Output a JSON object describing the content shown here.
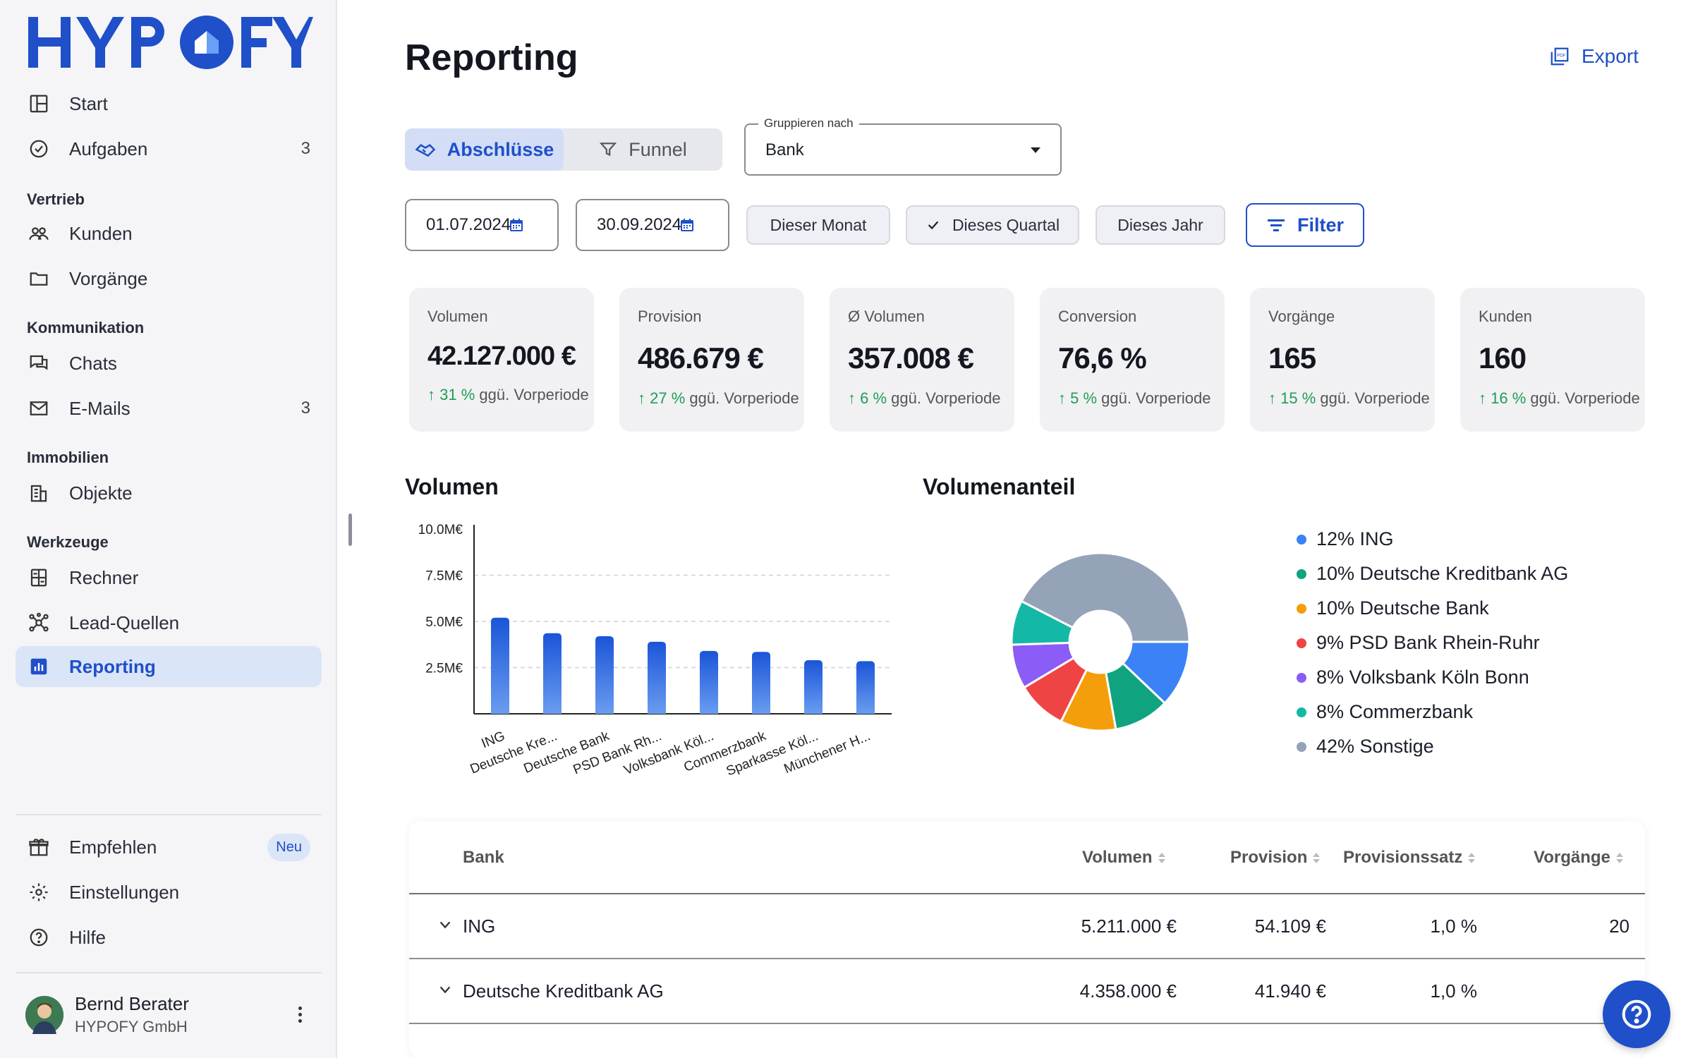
{
  "app": {
    "logo_text": "HYPOFY"
  },
  "sidebar": {
    "items": [
      {
        "label": "Start",
        "icon": "layout-icon"
      },
      {
        "label": "Aufgaben",
        "icon": "check-circle-icon",
        "count": "3"
      },
      {
        "label": "Kunden",
        "icon": "users-icon"
      },
      {
        "label": "Vorgänge",
        "icon": "folder-icon"
      },
      {
        "label": "Chats",
        "icon": "chat-icon"
      },
      {
        "label": "E-Mails",
        "icon": "mail-icon",
        "count": "3"
      },
      {
        "label": "Objekte",
        "icon": "building-icon"
      },
      {
        "label": "Rechner",
        "icon": "calculator-icon"
      },
      {
        "label": "Lead-Quellen",
        "icon": "network-icon"
      },
      {
        "label": "Reporting",
        "icon": "chart-icon"
      }
    ],
    "sections": {
      "vertrieb": "Vertrieb",
      "kommunikation": "Kommunikation",
      "immobilien": "Immobilien",
      "werkzeuge": "Werkzeuge"
    },
    "bottom": {
      "empfehlen": "Empfehlen",
      "neu_badge": "Neu",
      "einstellungen": "Einstellungen",
      "hilfe": "Hilfe"
    },
    "user": {
      "name": "Bernd Berater",
      "company": "HYPOFY GmbH"
    }
  },
  "header": {
    "title": "Reporting",
    "export_label": "Export"
  },
  "tabs": {
    "abschluesse": "Abschlüsse",
    "funnel": "Funnel"
  },
  "group_by": {
    "label": "Gruppieren nach",
    "value": "Bank"
  },
  "dates": {
    "from": "01.07.2024",
    "to": "30.09.2024"
  },
  "quick_filters": {
    "month": "Dieser Monat",
    "quarter": "Dieses Quartal",
    "year": "Dieses Jahr"
  },
  "filter_label": "Filter",
  "kpis": [
    {
      "label": "Volumen",
      "value": "42.127.000 €",
      "delta": "31 %",
      "delta_text": "ggü. Vorperiode"
    },
    {
      "label": "Provision",
      "value": "486.679 €",
      "delta": "27 %",
      "delta_text": "ggü. Vorperiode"
    },
    {
      "label": "Ø Volumen",
      "value": "357.008 €",
      "delta": "6 %",
      "delta_text": "ggü. Vorperiode"
    },
    {
      "label": "Conversion",
      "value": "76,6 %",
      "delta": "5 %",
      "delta_text": "ggü. Vorperiode"
    },
    {
      "label": "Vorgänge",
      "value": "165",
      "delta": "15 %",
      "delta_text": "ggü. Vorperiode"
    },
    {
      "label": "Kunden",
      "value": "160",
      "delta": "16 %",
      "delta_text": "ggü. Vorperiode"
    }
  ],
  "charts_titles": {
    "volumen": "Volumen",
    "volumenanteil": "Volumenanteil"
  },
  "chart_data": [
    {
      "type": "bar",
      "categories": [
        "ING",
        "Deutsche Kre...",
        "Deutsche Bank",
        "PSD Bank Rh...",
        "Volksbank Köl...",
        "Commerzbank",
        "Sparkasse Köl...",
        "Münchener H..."
      ],
      "values": [
        5.2,
        4.36,
        4.2,
        3.9,
        3.4,
        3.35,
        2.9,
        2.85
      ],
      "title": "Volumen",
      "ylim": [
        0,
        10
      ],
      "ytick_labels": [
        "2.5M€",
        "5.0M€",
        "7.5M€",
        "10.0M€"
      ],
      "yticks": [
        2.5,
        5.0,
        7.5,
        10.0
      ],
      "grid": true,
      "color": "#1f5fe0"
    },
    {
      "type": "pie",
      "title": "Volumenanteil",
      "labels": [
        "ING",
        "Deutsche Kreditbank AG",
        "Deutsche Bank",
        "PSD Bank Rhein-Ruhr",
        "Volksbank Köln Bonn",
        "Commerzbank",
        "Sonstige"
      ],
      "values": [
        12,
        10,
        10,
        9,
        8,
        8,
        42
      ],
      "legend": [
        "12% ING",
        "10% Deutsche Kreditbank AG",
        "10% Deutsche Bank",
        "9% PSD Bank Rhein-Ruhr",
        "8% Volksbank Köln Bonn",
        "8% Commerzbank",
        "42% Sonstige"
      ],
      "colors": [
        "#3b82f6",
        "#10a37f",
        "#f59e0b",
        "#ef4444",
        "#8b5cf6",
        "#14b8a6",
        "#94a3b8"
      ],
      "legend_position": "right"
    }
  ],
  "table": {
    "headers": {
      "bank": "Bank",
      "volumen": "Volumen",
      "provision": "Provision",
      "provisionssatz": "Provisionssatz",
      "vorgaenge": "Vorgänge"
    },
    "rows": [
      {
        "bank": "ING",
        "volumen": "5.211.000 €",
        "provision": "54.109 €",
        "satz": "1,0 %",
        "vorgaenge": "20"
      },
      {
        "bank": "Deutsche Kreditbank AG",
        "volumen": "4.358.000 €",
        "provision": "41.940 €",
        "satz": "1,0 %",
        "vorgaenge": ""
      }
    ]
  },
  "icons": {
    "help": "help-icon",
    "export": "pdf-icon"
  }
}
